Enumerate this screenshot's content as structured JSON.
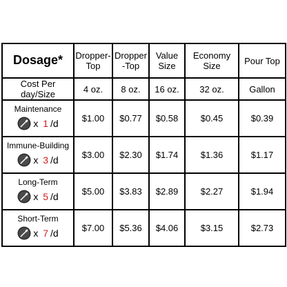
{
  "header": {
    "dosage_label": "Dosage*",
    "columns": [
      "Dropper-\nTop",
      "Dropper\n-Top",
      "Value\nSize",
      "Economy\nSize",
      "Pour Top"
    ]
  },
  "subheader": {
    "label": "Cost Per day/Size",
    "sizes": [
      "4 oz.",
      "8 oz.",
      "16 oz.",
      "32 oz.",
      "Gallon"
    ]
  },
  "rows": [
    {
      "name": "Maintenance",
      "multiplier_prefix": "x ",
      "count": "1",
      "unit": "/d",
      "prices": [
        "$1.00",
        "$0.77",
        "$0.58",
        "$0.45",
        "$0.39"
      ]
    },
    {
      "name": "Immune-Building",
      "multiplier_prefix": "x ",
      "count": "3",
      "unit": "/d",
      "prices": [
        "$3.00",
        "$2.30",
        "$1.74",
        "$1.36",
        "$1.17"
      ]
    },
    {
      "name": "Long-Term",
      "multiplier_prefix": "x ",
      "count": "5",
      "unit": "/d",
      "prices": [
        "$5.00",
        "$3.83",
        "$2.89",
        "$2.27",
        "$1.94"
      ]
    },
    {
      "name": "Short-Term",
      "multiplier_prefix": "x ",
      "count": "7",
      "unit": "/d",
      "prices": [
        "$7.00",
        "$5.36",
        "$4.06",
        "$3.15",
        "$2.73"
      ]
    }
  ],
  "icons": {
    "dose": "dropper-icon"
  },
  "colors": {
    "count_red": "#d1201f"
  }
}
